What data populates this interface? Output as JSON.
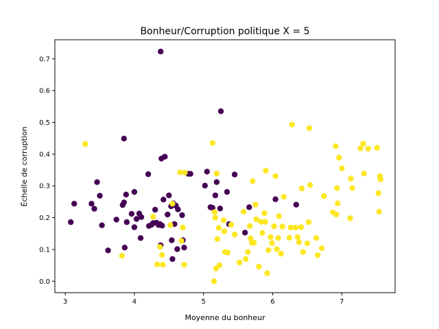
{
  "chart_data": {
    "type": "scatter",
    "title": "Bonheur/Corruption politique X = 5",
    "xlabel": "Moyenne du bonheur",
    "ylabel": "Échelle de corruption",
    "xlim": [
      2.85,
      7.77
    ],
    "ylim": [
      -0.036,
      0.76
    ],
    "xticks": [
      3,
      4,
      5,
      6,
      7
    ],
    "yticks": [
      0.0,
      0.1,
      0.2,
      0.3,
      0.4,
      0.5,
      0.6,
      0.7
    ],
    "grid": false,
    "legend": "none",
    "colors": {
      "below": "#440154",
      "above": "#fde725"
    },
    "series": [
      {
        "color_key": "below",
        "points": [
          [
            3.08,
            0.186
          ],
          [
            3.13,
            0.244
          ],
          [
            3.38,
            0.244
          ],
          [
            3.42,
            0.228
          ],
          [
            3.46,
            0.312
          ],
          [
            3.5,
            0.269
          ],
          [
            3.53,
            0.176
          ],
          [
            3.62,
            0.097
          ],
          [
            3.74,
            0.194
          ],
          [
            3.83,
            0.24
          ],
          [
            3.85,
            0.449
          ],
          [
            3.85,
            0.248
          ],
          [
            3.86,
            0.106
          ],
          [
            3.88,
            0.273
          ],
          [
            3.89,
            0.186
          ],
          [
            3.96,
            0.212
          ],
          [
            4.0,
            0.281
          ],
          [
            4.0,
            0.17
          ],
          [
            4.03,
            0.196
          ],
          [
            4.07,
            0.213
          ],
          [
            4.09,
            0.136
          ],
          [
            4.1,
            0.202
          ],
          [
            4.2,
            0.337
          ],
          [
            4.21,
            0.174
          ],
          [
            4.25,
            0.178
          ],
          [
            4.27,
            0.183
          ],
          [
            4.3,
            0.225
          ],
          [
            4.32,
            0.184
          ],
          [
            4.35,
            0.177
          ],
          [
            4.37,
            0.18
          ],
          [
            4.38,
            0.723
          ],
          [
            4.39,
            0.386
          ],
          [
            4.4,
            0.175
          ],
          [
            4.42,
            0.257
          ],
          [
            4.44,
            0.392
          ],
          [
            4.48,
            0.21
          ],
          [
            4.5,
            0.27
          ],
          [
            4.53,
            0.236
          ],
          [
            4.54,
            0.129
          ],
          [
            4.55,
            0.07
          ],
          [
            4.56,
            0.245
          ],
          [
            4.58,
            0.18
          ],
          [
            4.6,
            0.238
          ],
          [
            4.62,
            0.101
          ],
          [
            4.63,
            0.226
          ],
          [
            4.69,
            0.208
          ],
          [
            4.7,
            0.129
          ],
          [
            4.72,
            0.106
          ],
          [
            4.78,
            0.338
          ],
          [
            4.81,
            0.338
          ],
          [
            5.02,
            0.301
          ],
          [
            5.05,
            0.345
          ],
          [
            5.1,
            0.233
          ],
          [
            5.13,
            0.231
          ],
          [
            5.17,
            0.27
          ],
          [
            5.19,
            0.312
          ],
          [
            5.24,
            0.229
          ],
          [
            5.25,
            0.535
          ],
          [
            5.34,
            0.281
          ],
          [
            5.37,
            0.18
          ],
          [
            5.45,
            0.336
          ],
          [
            5.6,
            0.153
          ],
          [
            5.66,
            0.233
          ],
          [
            6.04,
            0.258
          ],
          [
            6.34,
            0.241
          ],
          [
            4.38,
            0.113
          ]
        ]
      },
      {
        "color_key": "above",
        "points": [
          [
            3.29,
            0.432
          ],
          [
            3.82,
            0.08
          ],
          [
            4.27,
            0.203
          ],
          [
            4.33,
            0.053
          ],
          [
            4.37,
            0.108
          ],
          [
            4.4,
            0.083
          ],
          [
            4.41,
            0.052
          ],
          [
            4.52,
            0.177
          ],
          [
            4.55,
            0.244
          ],
          [
            4.66,
            0.343
          ],
          [
            4.68,
            0.127
          ],
          [
            4.7,
            0.169
          ],
          [
            4.72,
            0.052
          ],
          [
            4.73,
            0.342
          ],
          [
            5.13,
            0.435
          ],
          [
            5.15,
            0.0
          ],
          [
            5.16,
            0.218
          ],
          [
            5.17,
            0.2
          ],
          [
            5.18,
            0.04
          ],
          [
            5.19,
            0.339
          ],
          [
            5.2,
            0.133
          ],
          [
            5.22,
            0.168
          ],
          [
            5.23,
            0.05
          ],
          [
            5.29,
            0.192
          ],
          [
            5.3,
            0.157
          ],
          [
            5.31,
            0.092
          ],
          [
            5.35,
            0.09
          ],
          [
            5.4,
            0.178
          ],
          [
            5.45,
            0.147
          ],
          [
            5.52,
            0.059
          ],
          [
            5.58,
            0.219
          ],
          [
            5.61,
            0.07
          ],
          [
            5.64,
            0.092
          ],
          [
            5.67,
            0.174
          ],
          [
            5.68,
            0.135
          ],
          [
            5.7,
            0.121
          ],
          [
            5.71,
            0.315
          ],
          [
            5.73,
            0.121
          ],
          [
            5.75,
            0.241
          ],
          [
            5.76,
            0.195
          ],
          [
            5.8,
            0.046
          ],
          [
            5.83,
            0.187
          ],
          [
            5.85,
            0.152
          ],
          [
            5.88,
            0.214
          ],
          [
            5.89,
            0.187
          ],
          [
            5.9,
            0.348
          ],
          [
            5.92,
            0.025
          ],
          [
            5.94,
            0.098
          ],
          [
            5.97,
            0.139
          ],
          [
            5.99,
            0.12
          ],
          [
            6.02,
            0.173
          ],
          [
            6.04,
            0.331
          ],
          [
            6.06,
            0.101
          ],
          [
            6.08,
            0.136
          ],
          [
            6.09,
            0.205
          ],
          [
            6.12,
            0.087
          ],
          [
            6.14,
            0.172
          ],
          [
            6.16,
            0.266
          ],
          [
            6.24,
            0.137
          ],
          [
            6.26,
            0.169
          ],
          [
            6.28,
            0.493
          ],
          [
            6.33,
            0.169
          ],
          [
            6.36,
            0.139
          ],
          [
            6.38,
            0.123
          ],
          [
            6.41,
            0.17
          ],
          [
            6.42,
            0.292
          ],
          [
            6.44,
            0.092
          ],
          [
            6.5,
            0.119
          ],
          [
            6.52,
            0.186
          ],
          [
            6.53,
            0.482
          ],
          [
            6.54,
            0.303
          ],
          [
            6.63,
            0.136
          ],
          [
            6.65,
            0.082
          ],
          [
            6.71,
            0.104
          ],
          [
            6.74,
            0.268
          ],
          [
            6.87,
            0.217
          ],
          [
            6.91,
            0.425
          ],
          [
            6.92,
            0.21
          ],
          [
            6.93,
            0.293
          ],
          [
            6.94,
            0.245
          ],
          [
            6.96,
            0.389
          ],
          [
            7.0,
            0.355
          ],
          [
            7.12,
            0.198
          ],
          [
            7.13,
            0.323
          ],
          [
            7.15,
            0.293
          ],
          [
            7.27,
            0.418
          ],
          [
            7.31,
            0.433
          ],
          [
            7.32,
            0.339
          ],
          [
            7.38,
            0.417
          ],
          [
            7.51,
            0.42
          ],
          [
            7.53,
            0.277
          ],
          [
            7.54,
            0.219
          ],
          [
            7.55,
            0.331
          ],
          [
            7.56,
            0.321
          ]
        ]
      }
    ]
  }
}
